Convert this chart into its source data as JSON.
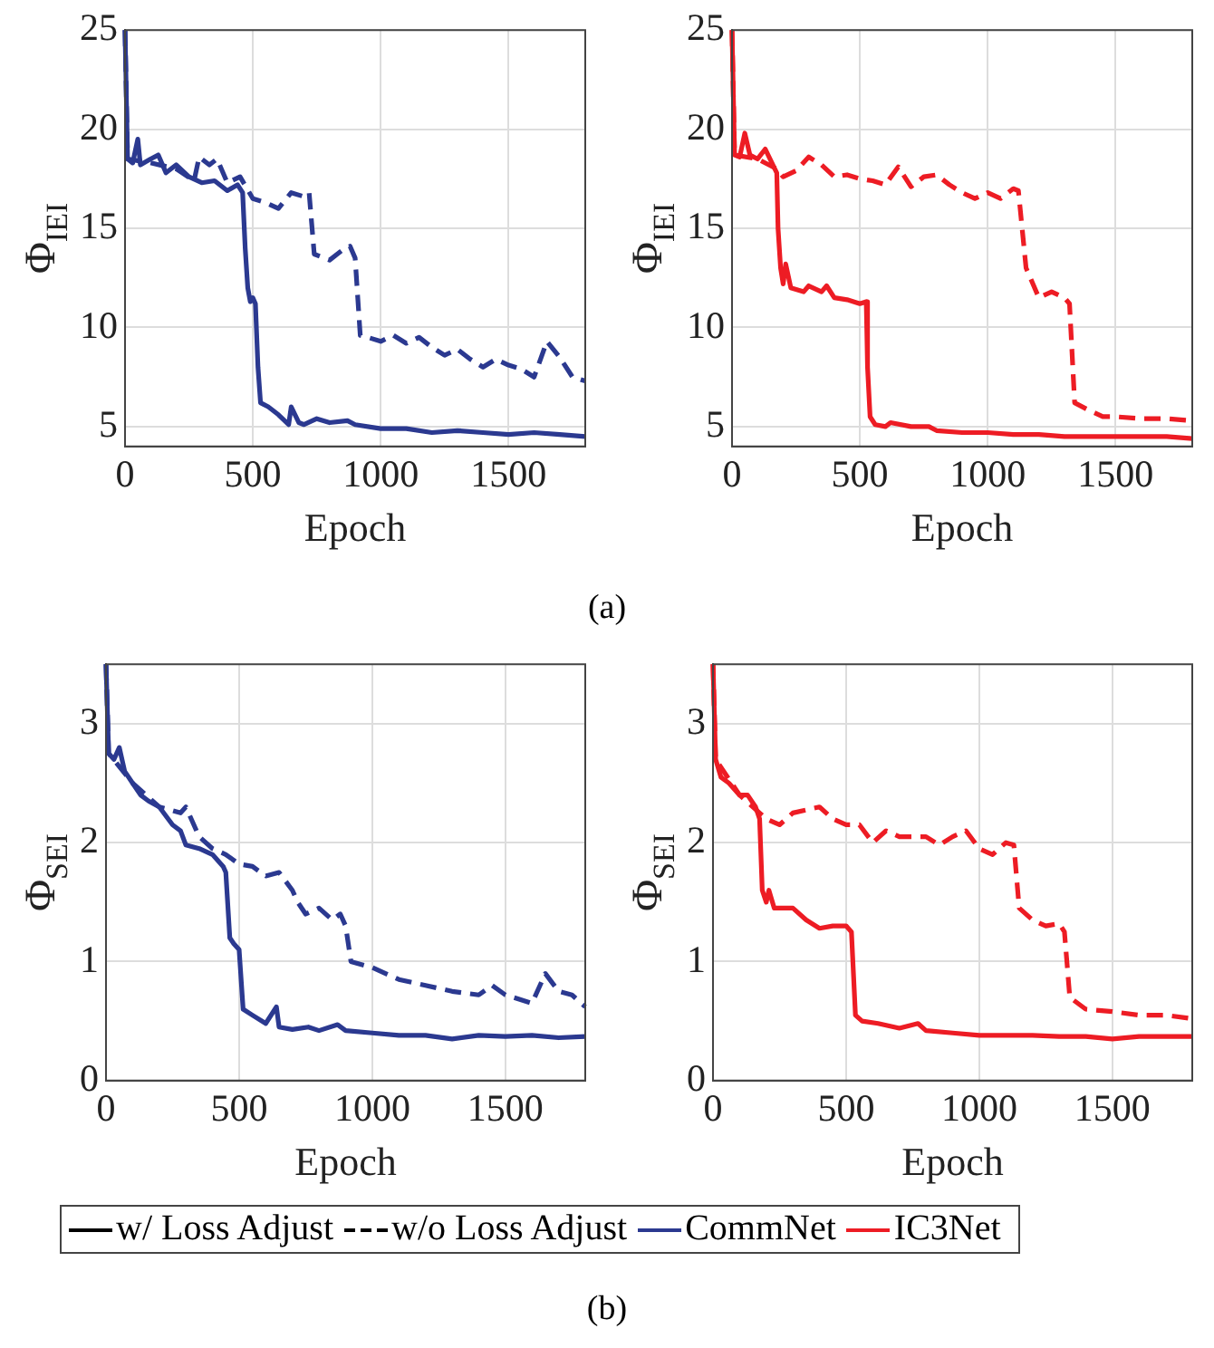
{
  "chart_data": [
    {
      "type": "line",
      "ylabel": "Φ$_{IEI}$",
      "xlabel": "Epoch",
      "xlim": [
        0,
        1800
      ],
      "xticks": [
        0,
        500,
        1000,
        1500
      ],
      "ylim": [
        4,
        25
      ],
      "yticks": [
        5,
        10,
        15,
        20,
        25
      ],
      "grid": true,
      "legend": false,
      "marker": "none",
      "series": [
        {
          "color": "#2b3990",
          "line_style": "solid",
          "x": [
            0,
            10,
            30,
            50,
            60,
            100,
            130,
            160,
            200,
            250,
            300,
            350,
            400,
            440,
            460,
            470,
            480,
            490,
            500,
            510,
            520,
            530,
            560,
            600,
            640,
            650,
            680,
            700,
            750,
            800,
            870,
            900,
            1000,
            1100,
            1200,
            1300,
            1400,
            1500,
            1600,
            1700,
            1800
          ],
          "values": [
            25,
            18.5,
            18.3,
            19.5,
            18.2,
            18.5,
            18.7,
            17.8,
            18.2,
            17.6,
            17.3,
            17.4,
            16.9,
            17.2,
            16.8,
            14,
            12,
            11.3,
            11.5,
            11.2,
            8,
            6.2,
            6,
            5.6,
            5.1,
            6,
            5.2,
            5.1,
            5.4,
            5.2,
            5.3,
            5.1,
            4.9,
            4.9,
            4.7,
            4.8,
            4.7,
            4.6,
            4.7,
            4.6,
            4.5
          ]
        },
        {
          "color": "#2b3990",
          "line_style": "dashed",
          "x": [
            0,
            10,
            100,
            200,
            270,
            290,
            330,
            360,
            400,
            450,
            500,
            550,
            600,
            650,
            700,
            720,
            740,
            800,
            850,
            880,
            900,
            920,
            950,
            1000,
            1050,
            1100,
            1150,
            1200,
            1250,
            1300,
            1350,
            1400,
            1450,
            1500,
            1550,
            1600,
            1650,
            1700,
            1750,
            1800
          ],
          "values": [
            25,
            18.5,
            18.3,
            18,
            17.4,
            18.6,
            18.2,
            18.5,
            17.3,
            17.6,
            16.5,
            16.3,
            16,
            16.8,
            16.6,
            16.8,
            13.7,
            13.4,
            13.9,
            14.1,
            13.5,
            9.6,
            9.5,
            9.3,
            9.6,
            9.2,
            9.5,
            9,
            8.6,
            8.9,
            8.4,
            8,
            8.4,
            8.1,
            7.9,
            7.5,
            9.3,
            8.5,
            7.5,
            7.3
          ]
        }
      ]
    },
    {
      "type": "line",
      "ylabel": "Φ$_{IEI}$",
      "xlabel": "Epoch",
      "xlim": [
        0,
        1800
      ],
      "xticks": [
        0,
        500,
        1000,
        1500
      ],
      "ylim": [
        4,
        25
      ],
      "yticks": [
        5,
        10,
        15,
        20,
        25
      ],
      "grid": true,
      "legend": false,
      "marker": "none",
      "series": [
        {
          "color": "#ed1c24",
          "line_style": "solid",
          "x": [
            0,
            10,
            30,
            50,
            70,
            100,
            130,
            160,
            175,
            180,
            190,
            200,
            210,
            230,
            280,
            300,
            350,
            370,
            400,
            450,
            500,
            525,
            530,
            540,
            560,
            600,
            620,
            700,
            770,
            800,
            900,
            1000,
            1100,
            1200,
            1300,
            1400,
            1500,
            1600,
            1700,
            1800
          ],
          "values": [
            25,
            18.7,
            18.6,
            19.8,
            18.7,
            18.5,
            19,
            18.2,
            17.8,
            15,
            13,
            12.2,
            13.2,
            12,
            11.8,
            12.1,
            11.8,
            12.1,
            11.5,
            11.4,
            11.2,
            11.3,
            8,
            5.5,
            5.1,
            5,
            5.2,
            5,
            5,
            4.8,
            4.7,
            4.7,
            4.6,
            4.6,
            4.5,
            4.5,
            4.5,
            4.5,
            4.5,
            4.4
          ]
        },
        {
          "color": "#ed1c24",
          "line_style": "dashed",
          "x": [
            0,
            10,
            100,
            175,
            200,
            250,
            300,
            350,
            400,
            450,
            500,
            550,
            600,
            650,
            700,
            750,
            800,
            850,
            900,
            950,
            1000,
            1050,
            1100,
            1120,
            1150,
            1200,
            1250,
            1300,
            1320,
            1340,
            1400,
            1450,
            1500,
            1600,
            1700,
            1800
          ],
          "values": [
            25,
            18.7,
            18.5,
            18,
            17.6,
            17.9,
            18.6,
            18.2,
            17.6,
            17.7,
            17.5,
            17.4,
            17.2,
            18.1,
            17.1,
            17.6,
            17.7,
            17.2,
            16.8,
            16.5,
            16.8,
            16.5,
            17,
            16.9,
            13,
            11.5,
            11.8,
            11.5,
            11.2,
            6.2,
            5.8,
            5.5,
            5.5,
            5.4,
            5.4,
            5.3
          ]
        }
      ]
    },
    {
      "type": "line",
      "ylabel": "Φ$_{SEI}$",
      "xlabel": "Epoch",
      "xlim": [
        0,
        1800
      ],
      "xticks": [
        0,
        500,
        1000,
        1500
      ],
      "ylim": [
        0,
        3.5
      ],
      "yticks": [
        0,
        1,
        2,
        3
      ],
      "grid": true,
      "legend": false,
      "marker": "none",
      "series": [
        {
          "color": "#2b3990",
          "line_style": "solid",
          "x": [
            0,
            10,
            30,
            50,
            70,
            100,
            130,
            160,
            200,
            250,
            280,
            300,
            350,
            400,
            440,
            450,
            465,
            480,
            500,
            515,
            550,
            600,
            640,
            650,
            700,
            760,
            800,
            870,
            900,
            1000,
            1100,
            1200,
            1300,
            1400,
            1500,
            1600,
            1700,
            1800
          ],
          "values": [
            3.5,
            2.75,
            2.7,
            2.8,
            2.6,
            2.5,
            2.4,
            2.35,
            2.3,
            2.15,
            2.1,
            1.98,
            1.95,
            1.9,
            1.8,
            1.75,
            1.2,
            1.15,
            1.1,
            0.6,
            0.55,
            0.48,
            0.62,
            0.45,
            0.43,
            0.45,
            0.42,
            0.47,
            0.42,
            0.4,
            0.38,
            0.38,
            0.35,
            0.38,
            0.37,
            0.38,
            0.36,
            0.37
          ]
        },
        {
          "color": "#2b3990",
          "line_style": "dashed",
          "x": [
            0,
            10,
            100,
            200,
            280,
            300,
            350,
            400,
            450,
            500,
            550,
            600,
            650,
            700,
            720,
            750,
            800,
            850,
            880,
            900,
            920,
            1000,
            1100,
            1200,
            1300,
            1400,
            1450,
            1500,
            1600,
            1650,
            1700,
            1750,
            1800
          ],
          "values": [
            3.5,
            2.75,
            2.5,
            2.3,
            2.25,
            2.3,
            2.05,
            1.95,
            1.9,
            1.82,
            1.8,
            1.72,
            1.75,
            1.6,
            1.5,
            1.4,
            1.45,
            1.35,
            1.4,
            1.3,
            1,
            0.95,
            0.85,
            0.8,
            0.75,
            0.72,
            0.8,
            0.72,
            0.65,
            0.9,
            0.75,
            0.72,
            0.62
          ]
        }
      ]
    },
    {
      "type": "line",
      "ylabel": "Φ$_{SEI}$",
      "xlabel": "Epoch",
      "xlim": [
        0,
        1800
      ],
      "xticks": [
        0,
        500,
        1000,
        1500
      ],
      "ylim": [
        0,
        3.5
      ],
      "yticks": [
        0,
        1,
        2,
        3
      ],
      "grid": true,
      "legend": false,
      "marker": "none",
      "series": [
        {
          "color": "#ed1c24",
          "line_style": "solid",
          "x": [
            0,
            10,
            30,
            60,
            100,
            130,
            160,
            175,
            185,
            200,
            210,
            230,
            300,
            350,
            400,
            450,
            500,
            520,
            535,
            560,
            620,
            700,
            770,
            800,
            900,
            1000,
            1100,
            1200,
            1300,
            1400,
            1500,
            1600,
            1700,
            1800
          ],
          "values": [
            3.5,
            2.7,
            2.55,
            2.5,
            2.4,
            2.4,
            2.3,
            2.2,
            1.6,
            1.5,
            1.6,
            1.45,
            1.45,
            1.35,
            1.28,
            1.3,
            1.3,
            1.25,
            0.55,
            0.5,
            0.48,
            0.44,
            0.48,
            0.42,
            0.4,
            0.38,
            0.38,
            0.38,
            0.37,
            0.37,
            0.35,
            0.37,
            0.37,
            0.37
          ]
        },
        {
          "color": "#ed1c24",
          "line_style": "dashed",
          "x": [
            0,
            10,
            100,
            175,
            200,
            250,
            300,
            400,
            450,
            500,
            550,
            600,
            650,
            700,
            800,
            850,
            900,
            950,
            1000,
            1050,
            1100,
            1130,
            1150,
            1200,
            1250,
            1300,
            1320,
            1340,
            1400,
            1500,
            1600,
            1700,
            1800
          ],
          "values": [
            3.5,
            2.7,
            2.4,
            2.25,
            2.2,
            2.15,
            2.25,
            2.3,
            2.2,
            2.15,
            2.15,
            2,
            2.1,
            2.05,
            2.05,
            1.98,
            2.05,
            2.1,
            1.95,
            1.9,
            2,
            1.98,
            1.45,
            1.35,
            1.3,
            1.32,
            1.25,
            0.7,
            0.6,
            0.58,
            0.55,
            0.55,
            0.52
          ]
        }
      ]
    },
    {
      "type": "other",
      "legend": "bottom",
      "annotations": [
        "(a)",
        "(b)"
      ],
      "series": [
        {
          "name": "w/ Loss Adjust",
          "color": "#000000",
          "line_style": "solid"
        },
        {
          "name": "w/o Loss Adjust",
          "color": "#000000",
          "line_style": "dashed"
        },
        {
          "name": "CommNet",
          "color": "#2b3990",
          "line_style": "solid"
        },
        {
          "name": "IC3Net",
          "color": "#ed1c24",
          "line_style": "solid"
        }
      ]
    }
  ]
}
